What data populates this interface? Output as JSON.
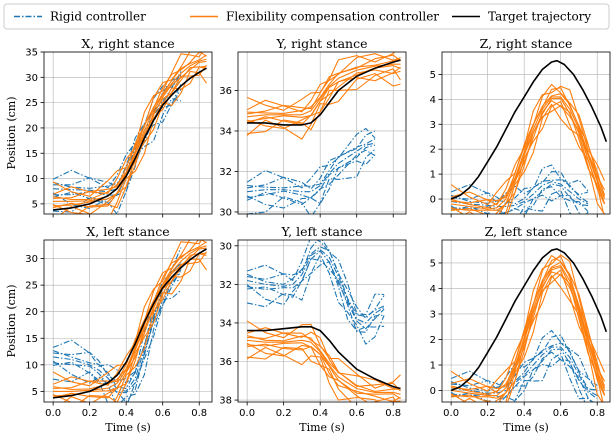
{
  "legend": {
    "items": [
      {
        "label": "Rigid controller",
        "color": "#1f77b4",
        "style": "dashdot"
      },
      {
        "label": "Flexibility compensation controller",
        "color": "#ff7f0e",
        "style": "solid"
      },
      {
        "label": "Target trajectory",
        "color": "#000000",
        "style": "solid"
      }
    ],
    "placement": "top-center"
  },
  "chart_data": [
    {
      "type": "line",
      "title": "X, right stance",
      "xlabel": "",
      "ylabel": "Position (cm)",
      "xlim": [
        -0.05,
        0.87
      ],
      "ylim": [
        3,
        35
      ],
      "xticks": [
        0.0,
        0.2,
        0.4,
        0.6,
        0.8
      ],
      "yticks": [
        5,
        10,
        15,
        20,
        25,
        30,
        35
      ],
      "show_xticklabels": false,
      "grid": true,
      "series": [
        {
          "name": "Target trajectory",
          "x": [
            0.0,
            0.1,
            0.2,
            0.3,
            0.35,
            0.4,
            0.45,
            0.5,
            0.55,
            0.6,
            0.65,
            0.7,
            0.75,
            0.8,
            0.84
          ],
          "y": [
            3.8,
            4.2,
            5.0,
            6.6,
            8.0,
            10.5,
            14.0,
            18.0,
            21.5,
            24.5,
            26.5,
            28.3,
            29.8,
            31.0,
            31.8
          ]
        },
        {
          "name": "Flexibility compensation controller",
          "x": [
            0.0,
            0.1,
            0.2,
            0.3,
            0.35,
            0.4,
            0.45,
            0.5,
            0.55,
            0.6,
            0.65,
            0.7,
            0.75,
            0.8,
            0.84
          ],
          "y": [
            5.5,
            5.5,
            5.6,
            6.5,
            8.0,
            11.0,
            15.0,
            19.5,
            23.5,
            26.5,
            28.8,
            30.8,
            32.3,
            33.2,
            33.6
          ]
        },
        {
          "name": "Rigid controller",
          "x": [
            0.0,
            0.1,
            0.2,
            0.3,
            0.35,
            0.4,
            0.45,
            0.5,
            0.55,
            0.6,
            0.65,
            0.7
          ],
          "y": [
            8.0,
            7.8,
            7.7,
            7.4,
            8.0,
            11.0,
            15.5,
            19.5,
            22.5,
            25.0,
            27.0,
            29.5
          ]
        }
      ]
    },
    {
      "type": "line",
      "title": "Y, right stance",
      "xlabel": "",
      "ylabel": "",
      "xlim": [
        -0.05,
        0.87
      ],
      "ylim": [
        29.9,
        37.9
      ],
      "xticks": [
        0.0,
        0.2,
        0.4,
        0.6,
        0.8
      ],
      "yticks": [
        30,
        32,
        34,
        36
      ],
      "show_xticklabels": false,
      "grid": true,
      "series": [
        {
          "name": "Target trajectory",
          "x": [
            0.0,
            0.1,
            0.2,
            0.3,
            0.35,
            0.4,
            0.45,
            0.5,
            0.6,
            0.7,
            0.8,
            0.84
          ],
          "y": [
            34.4,
            34.4,
            34.3,
            34.3,
            34.4,
            34.8,
            35.4,
            36.0,
            36.7,
            37.1,
            37.4,
            37.5
          ]
        },
        {
          "name": "Flexibility compensation controller",
          "x": [
            0.0,
            0.1,
            0.2,
            0.3,
            0.35,
            0.4,
            0.45,
            0.5,
            0.6,
            0.7,
            0.8,
            0.84
          ],
          "y": [
            34.7,
            34.8,
            34.8,
            34.8,
            35.0,
            35.6,
            36.2,
            36.6,
            37.0,
            37.2,
            37.3,
            37.3
          ]
        },
        {
          "name": "Rigid controller",
          "x": [
            0.0,
            0.1,
            0.2,
            0.3,
            0.35,
            0.4,
            0.45,
            0.5,
            0.6,
            0.65,
            0.7
          ],
          "y": [
            31.0,
            31.1,
            31.1,
            31.0,
            31.0,
            31.3,
            31.9,
            32.4,
            33.0,
            33.3,
            33.4
          ]
        }
      ]
    },
    {
      "type": "line",
      "title": "Z, right stance",
      "xlabel": "",
      "ylabel": "",
      "xlim": [
        -0.05,
        0.87
      ],
      "ylim": [
        -0.6,
        5.9
      ],
      "xticks": [
        0.0,
        0.2,
        0.4,
        0.6,
        0.8
      ],
      "yticks": [
        0,
        1,
        2,
        3,
        4,
        5
      ],
      "show_xticklabels": false,
      "grid": true,
      "series": [
        {
          "name": "Target trajectory",
          "x": [
            0.0,
            0.05,
            0.1,
            0.15,
            0.2,
            0.25,
            0.3,
            0.35,
            0.4,
            0.45,
            0.5,
            0.55,
            0.58,
            0.62,
            0.67,
            0.72,
            0.77,
            0.82,
            0.85
          ],
          "y": [
            0.0,
            0.15,
            0.45,
            0.9,
            1.5,
            2.1,
            2.8,
            3.5,
            4.1,
            4.7,
            5.2,
            5.5,
            5.55,
            5.4,
            5.0,
            4.4,
            3.7,
            2.9,
            2.3
          ]
        },
        {
          "name": "Flexibility compensation controller",
          "x": [
            0.0,
            0.1,
            0.2,
            0.25,
            0.3,
            0.35,
            0.4,
            0.45,
            0.5,
            0.55,
            0.6,
            0.65,
            0.7,
            0.75,
            0.8,
            0.84
          ],
          "y": [
            -0.2,
            -0.3,
            -0.4,
            -0.35,
            0.0,
            0.8,
            1.8,
            2.8,
            3.6,
            4.1,
            4.1,
            3.6,
            2.8,
            1.8,
            0.8,
            0.0
          ]
        },
        {
          "name": "Rigid controller",
          "x": [
            0.0,
            0.1,
            0.2,
            0.25,
            0.3,
            0.35,
            0.4,
            0.45,
            0.5,
            0.55,
            0.6,
            0.65,
            0.7,
            0.75
          ],
          "y": [
            -0.1,
            -0.2,
            -0.25,
            -0.3,
            -0.3,
            -0.25,
            -0.1,
            0.2,
            0.55,
            0.7,
            0.6,
            0.3,
            0.0,
            -0.2
          ]
        }
      ]
    },
    {
      "type": "line",
      "title": "X, left stance",
      "xlabel": "Time (s)",
      "ylabel": "Position (cm)",
      "xlim": [
        -0.05,
        0.87
      ],
      "ylim": [
        3,
        33.5
      ],
      "xticks": [
        0.0,
        0.2,
        0.4,
        0.6,
        0.8
      ],
      "yticks": [
        5,
        10,
        15,
        20,
        25,
        30
      ],
      "show_xticklabels": true,
      "grid": true,
      "series": [
        {
          "name": "Target trajectory",
          "x": [
            0.0,
            0.1,
            0.2,
            0.3,
            0.35,
            0.4,
            0.45,
            0.5,
            0.55,
            0.6,
            0.65,
            0.7,
            0.75,
            0.8,
            0.84
          ],
          "y": [
            3.8,
            4.2,
            5.0,
            6.6,
            8.0,
            10.5,
            14.0,
            18.0,
            21.5,
            24.5,
            26.5,
            28.3,
            29.8,
            31.0,
            31.8
          ]
        },
        {
          "name": "Flexibility compensation controller",
          "x": [
            0.0,
            0.1,
            0.2,
            0.3,
            0.35,
            0.4,
            0.45,
            0.5,
            0.55,
            0.6,
            0.65,
            0.7,
            0.75,
            0.8,
            0.84
          ],
          "y": [
            5.0,
            5.0,
            5.2,
            5.6,
            6.5,
            9.0,
            13.0,
            17.5,
            21.5,
            25.0,
            27.5,
            29.5,
            31.0,
            32.0,
            32.4
          ]
        },
        {
          "name": "Rigid controller",
          "x": [
            0.0,
            0.1,
            0.2,
            0.25,
            0.3,
            0.35,
            0.4,
            0.45,
            0.5,
            0.55,
            0.6,
            0.65,
            0.7
          ],
          "y": [
            11.5,
            11.0,
            10.0,
            9.0,
            7.5,
            5.5,
            5.0,
            7.5,
            13.0,
            19.0,
            23.5,
            26.5,
            28.5
          ]
        }
      ]
    },
    {
      "type": "line",
      "title": "Y, left stance",
      "xlabel": "Time (s)",
      "ylabel": "",
      "xlim": [
        -0.05,
        0.87
      ],
      "ylim": [
        38.1,
        29.7
      ],
      "y_inverted": true,
      "xticks": [
        0.0,
        0.2,
        0.4,
        0.6,
        0.8
      ],
      "yticks": [
        30,
        32,
        34,
        36,
        38
      ],
      "show_xticklabels": true,
      "grid": true,
      "series": [
        {
          "name": "Target trajectory",
          "x": [
            0.0,
            0.1,
            0.2,
            0.3,
            0.35,
            0.4,
            0.45,
            0.5,
            0.6,
            0.7,
            0.8,
            0.84
          ],
          "y": [
            34.4,
            34.4,
            34.3,
            34.2,
            34.2,
            34.4,
            34.9,
            35.5,
            36.4,
            36.9,
            37.3,
            37.4
          ]
        },
        {
          "name": "Flexibility compensation controller",
          "x": [
            0.0,
            0.1,
            0.2,
            0.3,
            0.35,
            0.4,
            0.45,
            0.5,
            0.6,
            0.7,
            0.8,
            0.84
          ],
          "y": [
            34.9,
            35.0,
            35.0,
            34.9,
            35.0,
            35.5,
            36.2,
            36.8,
            37.4,
            37.6,
            37.6,
            37.7
          ]
        },
        {
          "name": "Rigid controller",
          "x": [
            0.0,
            0.1,
            0.2,
            0.25,
            0.3,
            0.35,
            0.4,
            0.45,
            0.5,
            0.55,
            0.6,
            0.65,
            0.7,
            0.75
          ],
          "y": [
            31.8,
            32.0,
            32.1,
            32.0,
            31.5,
            30.5,
            30.2,
            30.6,
            31.6,
            32.8,
            33.8,
            34.0,
            33.5,
            33.2
          ]
        }
      ]
    },
    {
      "type": "line",
      "title": "Z, left stance",
      "xlabel": "Time (s)",
      "ylabel": "",
      "xlim": [
        -0.05,
        0.87
      ],
      "ylim": [
        -0.45,
        5.9
      ],
      "xticks": [
        0.0,
        0.2,
        0.4,
        0.6,
        0.8
      ],
      "yticks": [
        0,
        1,
        2,
        3,
        4,
        5
      ],
      "show_xticklabels": true,
      "grid": true,
      "series": [
        {
          "name": "Target trajectory",
          "x": [
            0.0,
            0.05,
            0.1,
            0.15,
            0.2,
            0.25,
            0.3,
            0.35,
            0.4,
            0.45,
            0.5,
            0.55,
            0.58,
            0.62,
            0.67,
            0.72,
            0.77,
            0.82,
            0.85
          ],
          "y": [
            0.0,
            0.15,
            0.45,
            0.9,
            1.5,
            2.1,
            2.8,
            3.5,
            4.1,
            4.7,
            5.2,
            5.5,
            5.55,
            5.4,
            5.0,
            4.4,
            3.7,
            2.9,
            2.3
          ]
        },
        {
          "name": "Flexibility compensation controller",
          "x": [
            0.0,
            0.1,
            0.2,
            0.25,
            0.3,
            0.35,
            0.4,
            0.45,
            0.5,
            0.55,
            0.6,
            0.65,
            0.7,
            0.75,
            0.8,
            0.84
          ],
          "y": [
            0.0,
            -0.1,
            -0.2,
            -0.2,
            0.1,
            0.9,
            2.0,
            3.2,
            4.2,
            4.8,
            4.9,
            4.3,
            3.2,
            2.0,
            0.8,
            0.0
          ]
        },
        {
          "name": "Rigid controller",
          "x": [
            0.0,
            0.1,
            0.2,
            0.25,
            0.3,
            0.35,
            0.4,
            0.45,
            0.5,
            0.55,
            0.6,
            0.65,
            0.7,
            0.75,
            0.8
          ],
          "y": [
            0.1,
            0.0,
            -0.1,
            -0.1,
            0.0,
            0.3,
            0.6,
            1.0,
            1.4,
            1.7,
            1.7,
            1.3,
            0.6,
            0.0,
            -0.2
          ]
        }
      ]
    }
  ]
}
